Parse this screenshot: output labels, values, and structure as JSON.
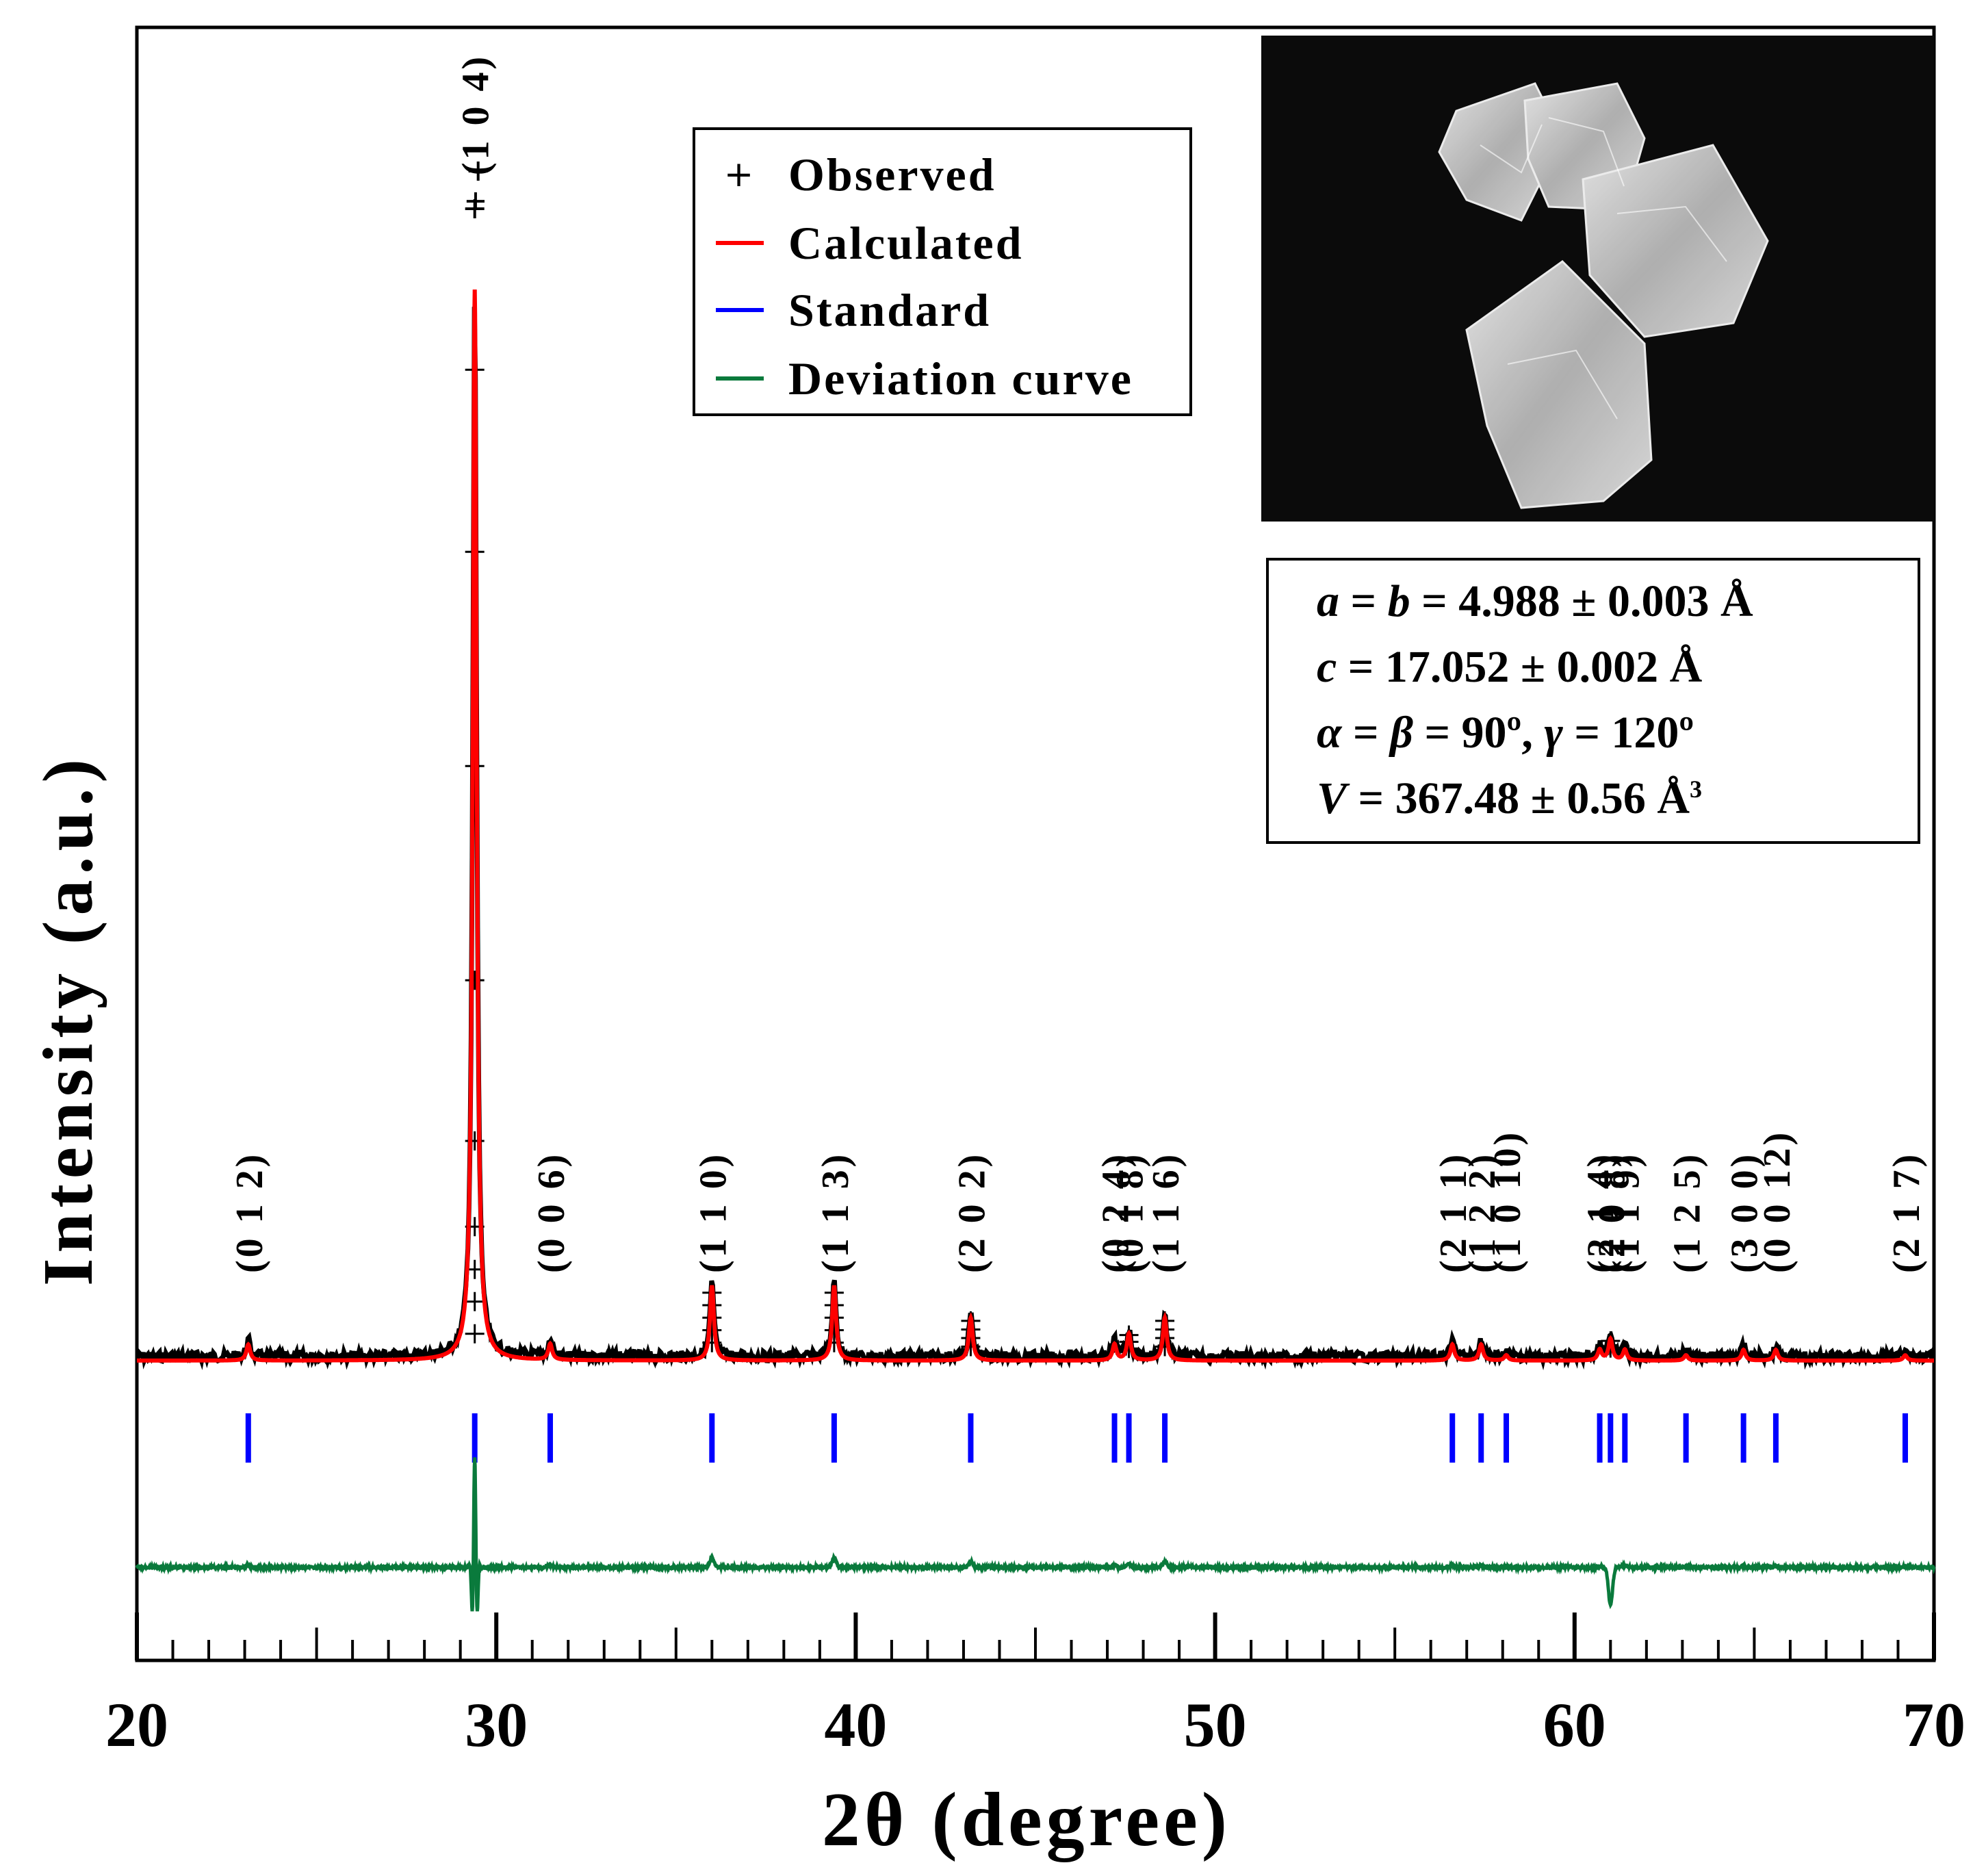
{
  "chart_data": {
    "type": "line",
    "xlabel": "2θ (degree)",
    "ylabel": "Intensity (a.u.)",
    "xlim": [
      20,
      70
    ],
    "x_ticks": [
      20,
      30,
      40,
      50,
      60,
      70
    ],
    "series": [
      {
        "name": "Observed",
        "marker": "+",
        "color": "#000000"
      },
      {
        "name": "Calculated",
        "color": "#ff0000"
      },
      {
        "name": "Standard",
        "color": "#0000ff"
      },
      {
        "name": "Deviation curve",
        "color": "#0a7a3c"
      }
    ],
    "peaks": [
      {
        "hkl": "(0 1 2)",
        "pos": 23.1,
        "intensity": 1.5
      },
      {
        "hkl": "(1 0 4)",
        "pos": 29.4,
        "intensity": 100
      },
      {
        "hkl": "(0 0 6)",
        "pos": 31.5,
        "intensity": 1.5
      },
      {
        "hkl": "(1 1 0)",
        "pos": 36.0,
        "intensity": 7
      },
      {
        "hkl": "(1 1 3)",
        "pos": 39.4,
        "intensity": 7
      },
      {
        "hkl": "(2 0 2)",
        "pos": 43.2,
        "intensity": 4
      },
      {
        "hkl": "(0 2 4)",
        "pos": 47.2,
        "intensity": 1.5
      },
      {
        "hkl": "(0 1 8)",
        "pos": 47.6,
        "intensity": 2.5
      },
      {
        "hkl": "(1 1 6)",
        "pos": 48.6,
        "intensity": 4
      },
      {
        "hkl": "(2 1 1)",
        "pos": 56.6,
        "intensity": 1.5
      },
      {
        "hkl": "(1 2 2)",
        "pos": 57.4,
        "intensity": 1.5
      },
      {
        "hkl": "(1 0 10)",
        "pos": 58.1,
        "intensity": 0.5
      },
      {
        "hkl": "(2 1 4)",
        "pos": 60.7,
        "intensity": 1
      },
      {
        "hkl": "(2 0 8)",
        "pos": 61.0,
        "intensity": 2
      },
      {
        "hkl": "(1 1 9)",
        "pos": 61.4,
        "intensity": 1
      },
      {
        "hkl": "(1 2 5)",
        "pos": 63.1,
        "intensity": 0.5
      },
      {
        "hkl": "(3 0 0)",
        "pos": 64.7,
        "intensity": 1
      },
      {
        "hkl": "(0 0 12)",
        "pos": 65.6,
        "intensity": 1
      },
      {
        "hkl": "(2 1 7)",
        "pos": 69.2,
        "intensity": 0.5
      }
    ]
  },
  "legend": {
    "observed_marker": "+",
    "observed": "Observed",
    "calculated": "Calculated",
    "standard": "Standard",
    "deviation": "Deviation curve"
  },
  "lattice": {
    "line1": {
      "sym": "a",
      "eq1": " = ",
      "sym2": "b",
      "rest": " = 4.988 ± 0.003 Å"
    },
    "line2": {
      "sym": "c",
      "rest": " = 17.052 ± 0.002 Å"
    },
    "line3": {
      "sym": "α",
      "eq1": " = ",
      "sym2": "β",
      "mid": " = 90º, ",
      "sym3": "γ",
      "rest": " = 120º"
    },
    "line4": {
      "sym": "V",
      "rest": " = 367.48 ± 0.56 Å",
      "sup": "3"
    }
  },
  "colors": {
    "calculated": "#ff0000",
    "standard": "#0000ff",
    "deviation": "#0a7a3c",
    "observed": "#000000",
    "photo_bg": "#0b0b0b"
  }
}
